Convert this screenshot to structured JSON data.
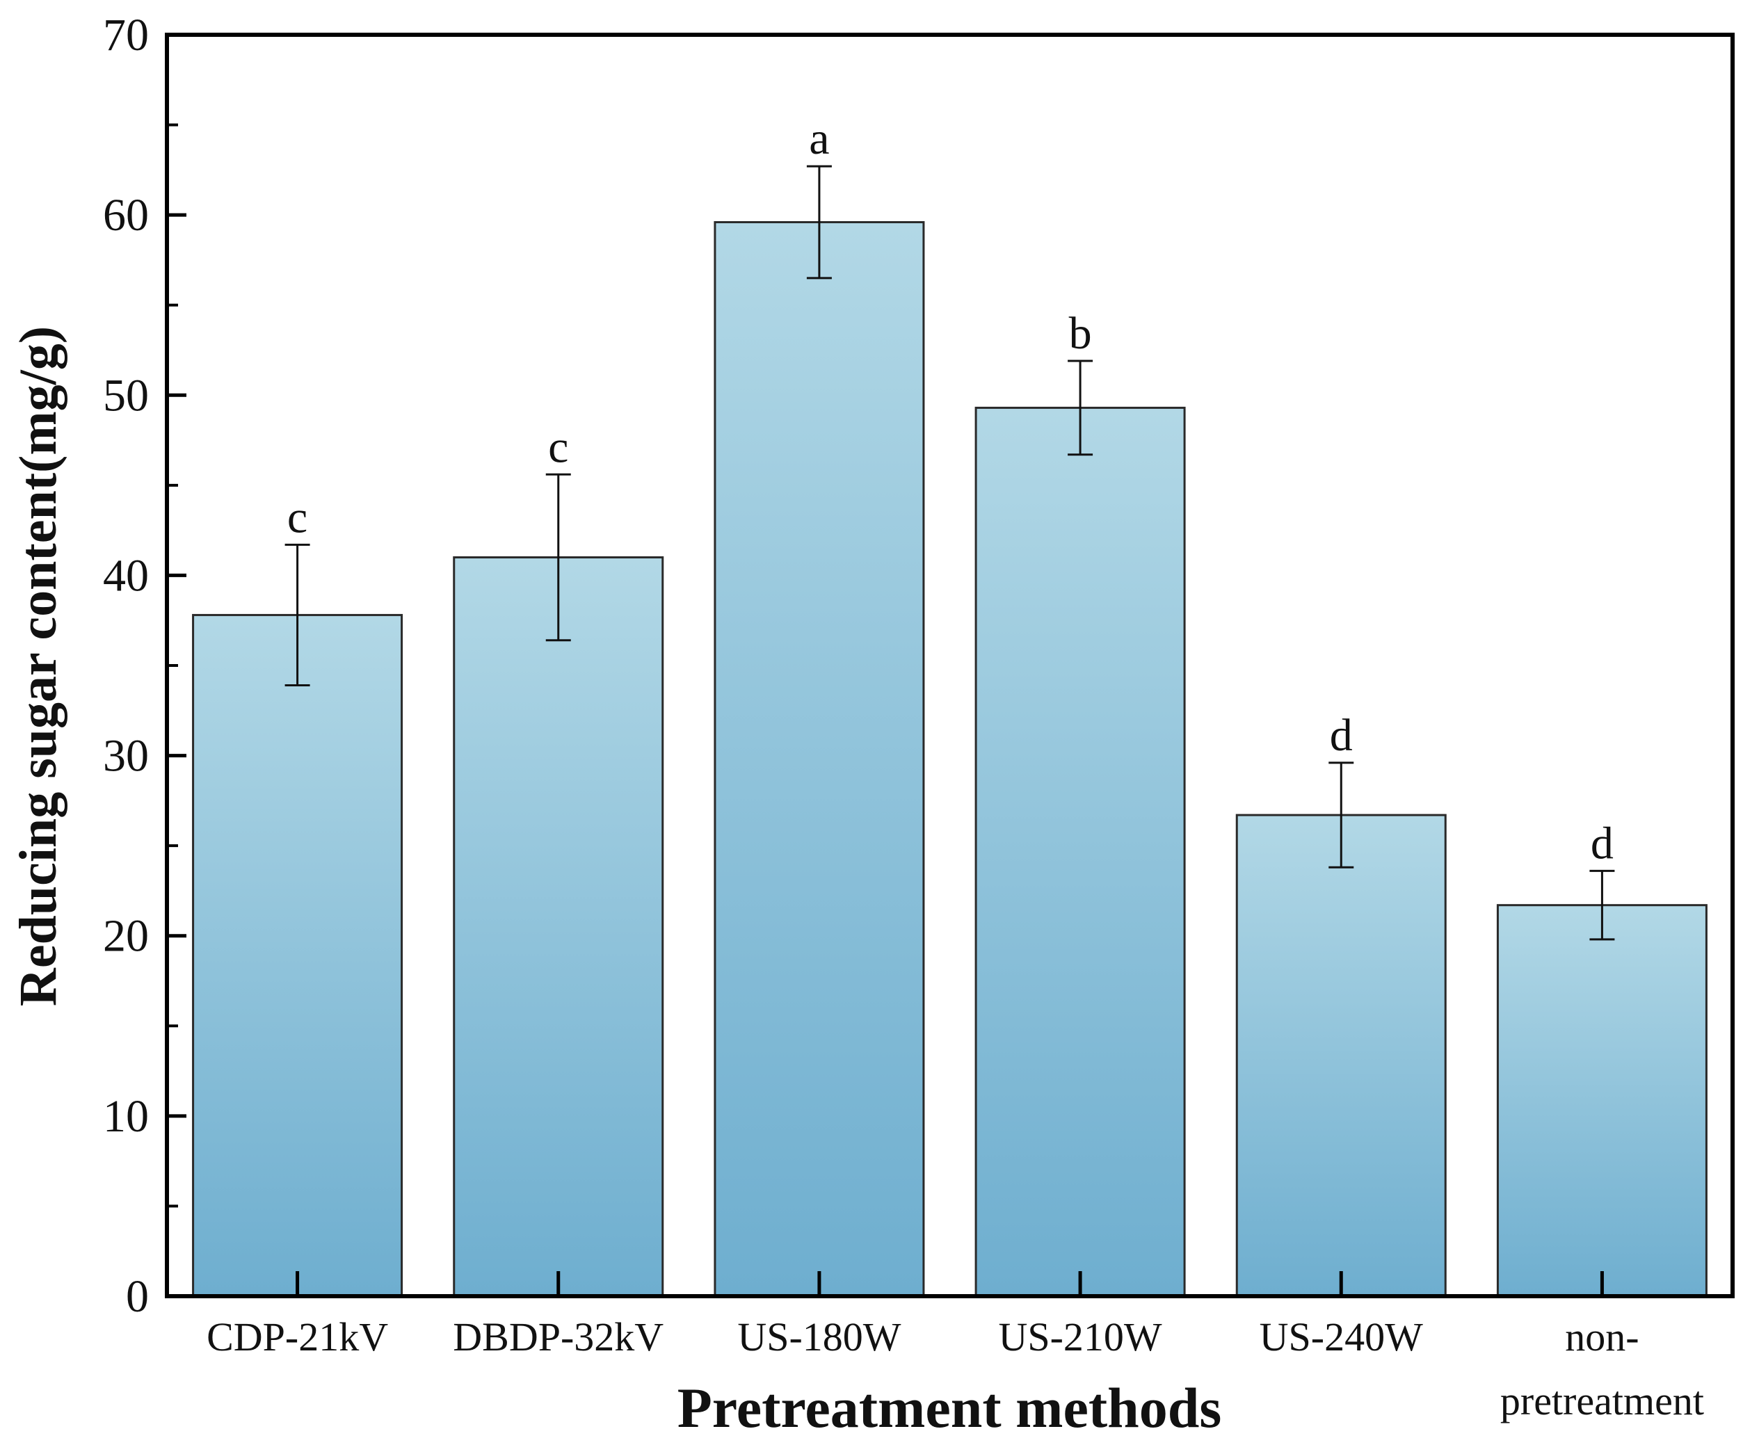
{
  "chart_data": {
    "type": "bar",
    "title": "",
    "xlabel": "Pretreatment methods",
    "ylabel": "Reducing sugar content(mg/g)",
    "ylim": [
      0,
      70
    ],
    "yticks": [
      0,
      10,
      20,
      30,
      40,
      50,
      60,
      70
    ],
    "categories": [
      [
        "CDP-21kV"
      ],
      [
        "DBDP-32kV"
      ],
      [
        "US-180W"
      ],
      [
        "US-210W"
      ],
      [
        "US-240W"
      ],
      [
        "non-",
        "pretreatment"
      ]
    ],
    "values": [
      37.8,
      41.0,
      59.6,
      49.3,
      26.7,
      21.7
    ],
    "errors": [
      3.9,
      4.6,
      3.1,
      2.6,
      2.9,
      1.9
    ],
    "significance": [
      "c",
      "c",
      "a",
      "b",
      "d",
      "d"
    ],
    "colors": {
      "bar_top": "#b2d8e6",
      "bar_bottom": "#6eaecf",
      "bar_edge": "#2a2a2a",
      "axis": "#000000"
    },
    "grid": false
  }
}
